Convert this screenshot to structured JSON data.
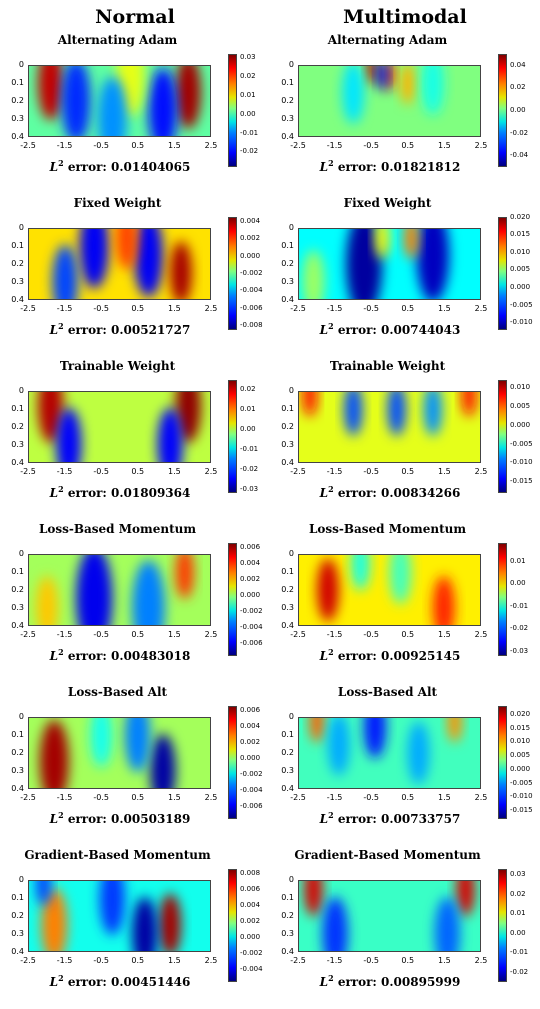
{
  "columns": [
    "Normal",
    "Multimodal"
  ],
  "chart_data": [
    {
      "type": "heatmap",
      "column": "Normal",
      "title": "Alternating Adam",
      "error_label": "L",
      "error_exp": "2",
      "error_word": "error:",
      "error_value": "0.01404065",
      "x_ticks": [
        "-2.5",
        "-1.5",
        "-0.5",
        "0.5",
        "1.5",
        "2.5"
      ],
      "y_ticks": [
        "0",
        "0.1",
        "0.2",
        "0.3",
        "0.4"
      ],
      "colorbar_ticks": [
        "0.03",
        "0.02",
        "0.01",
        "0.00",
        "-0.01",
        "-0.02"
      ],
      "vmin": -0.028,
      "vmax": 0.032,
      "blobs": [
        {
          "x": -1.9,
          "y": 0.1,
          "v": 0.028,
          "r": 0.35
        },
        {
          "x": 1.9,
          "y": 0.15,
          "v": 0.03,
          "r": 0.35
        },
        {
          "x": -1.2,
          "y": 0.2,
          "v": -0.018,
          "r": 0.4
        },
        {
          "x": 1.2,
          "y": 0.25,
          "v": -0.02,
          "r": 0.4
        },
        {
          "x": 0.3,
          "y": 0.05,
          "v": 0.008,
          "r": 0.4
        },
        {
          "x": -0.2,
          "y": 0.3,
          "v": -0.012,
          "r": 0.4
        }
      ]
    },
    {
      "type": "heatmap",
      "column": "Multimodal",
      "title": "Alternating Adam",
      "error_label": "L",
      "error_exp": "2",
      "error_word": "error:",
      "error_value": "0.01821812",
      "x_ticks": [
        "-2.5",
        "-1.5",
        "-0.5",
        "0.5",
        "1.5",
        "2.5"
      ],
      "y_ticks": [
        "0",
        "0.1",
        "0.2",
        "0.3",
        "0.4"
      ],
      "colorbar_ticks": [
        "0.04",
        "0.02",
        "0.00",
        "-0.02",
        "-0.04"
      ],
      "vmin": -0.05,
      "vmax": 0.05,
      "blobs": [
        {
          "x": -0.5,
          "y": 0.02,
          "v": 0.045,
          "r": 0.15
        },
        {
          "x": 0,
          "y": 0.05,
          "v": 0.035,
          "r": 0.15
        },
        {
          "x": -0.2,
          "y": 0.05,
          "v": -0.04,
          "r": 0.15
        },
        {
          "x": 0.5,
          "y": 0.1,
          "v": 0.02,
          "r": 0.2
        },
        {
          "x": -1.0,
          "y": 0.15,
          "v": -0.015,
          "r": 0.3
        },
        {
          "x": 1.2,
          "y": 0.1,
          "v": -0.01,
          "r": 0.3
        }
      ]
    },
    {
      "type": "heatmap",
      "column": "Normal",
      "title": "Fixed Weight",
      "error_label": "L",
      "error_exp": "2",
      "error_word": "error:",
      "error_value": "0.00521727",
      "x_ticks": [
        "-2.5",
        "-1.5",
        "-0.5",
        "0.5",
        "1.5",
        "2.5"
      ],
      "y_ticks": [
        "0",
        "0.1",
        "0.2",
        "0.3",
        "0.4"
      ],
      "colorbar_ticks": [
        "0.004",
        "0.002",
        "0.000",
        "-0.002",
        "-0.004",
        "-0.006",
        "-0.008"
      ],
      "vmin": -0.0085,
      "vmax": 0.0045,
      "blobs": [
        {
          "x": -0.7,
          "y": 0.1,
          "v": -0.007,
          "r": 0.4
        },
        {
          "x": 0.8,
          "y": 0.15,
          "v": -0.007,
          "r": 0.4
        },
        {
          "x": 1.7,
          "y": 0.25,
          "v": 0.004,
          "r": 0.3
        },
        {
          "x": 0.2,
          "y": 0.05,
          "v": 0.002,
          "r": 0.3
        },
        {
          "x": -1.5,
          "y": 0.3,
          "v": -0.006,
          "r": 0.35
        }
      ]
    },
    {
      "type": "heatmap",
      "column": "Multimodal",
      "title": "Fixed Weight",
      "error_label": "L",
      "error_exp": "2",
      "error_word": "error:",
      "error_value": "0.00744043",
      "x_ticks": [
        "-2.5",
        "-1.5",
        "-0.5",
        "0.5",
        "1.5",
        "2.5"
      ],
      "y_ticks": [
        "0",
        "0.1",
        "0.2",
        "0.3",
        "0.4"
      ],
      "colorbar_ticks": [
        "0.020",
        "0.015",
        "0.010",
        "0.005",
        "0.000",
        "-0.005",
        "-0.010"
      ],
      "vmin": -0.012,
      "vmax": 0.02,
      "blobs": [
        {
          "x": -0.7,
          "y": 0.2,
          "v": -0.011,
          "r": 0.5
        },
        {
          "x": 1.2,
          "y": 0.15,
          "v": -0.01,
          "r": 0.45
        },
        {
          "x": 0.6,
          "y": 0.05,
          "v": 0.012,
          "r": 0.2
        },
        {
          "x": -0.2,
          "y": 0.05,
          "v": 0.008,
          "r": 0.2
        },
        {
          "x": -2.1,
          "y": 0.3,
          "v": 0.005,
          "r": 0.3
        }
      ]
    },
    {
      "type": "heatmap",
      "column": "Normal",
      "title": "Trainable Weight",
      "error_label": "L",
      "error_exp": "2",
      "error_word": "error:",
      "error_value": "0.01809364",
      "x_ticks": [
        "-2.5",
        "-1.5",
        "-0.5",
        "0.5",
        "1.5",
        "2.5"
      ],
      "y_ticks": [
        "0",
        "0.1",
        "0.2",
        "0.3",
        "0.4"
      ],
      "colorbar_ticks": [
        "0.02",
        "0.01",
        "0.00",
        "-0.01",
        "-0.02",
        "-0.03"
      ],
      "vmin": -0.032,
      "vmax": 0.025,
      "blobs": [
        {
          "x": -1.9,
          "y": 0.08,
          "v": 0.022,
          "r": 0.35
        },
        {
          "x": 1.9,
          "y": 0.08,
          "v": 0.024,
          "r": 0.35
        },
        {
          "x": -1.4,
          "y": 0.3,
          "v": -0.025,
          "r": 0.35
        },
        {
          "x": 1.4,
          "y": 0.3,
          "v": -0.025,
          "r": 0.35
        }
      ]
    },
    {
      "type": "heatmap",
      "column": "Multimodal",
      "title": "Trainable Weight",
      "error_label": "L",
      "error_exp": "2",
      "error_word": "error:",
      "error_value": "0.00834266",
      "x_ticks": [
        "-2.5",
        "-1.5",
        "-0.5",
        "0.5",
        "1.5",
        "2.5"
      ],
      "y_ticks": [
        "0",
        "0.1",
        "0.2",
        "0.3",
        "0.4"
      ],
      "colorbar_ticks": [
        "0.010",
        "0.005",
        "0.000",
        "-0.005",
        "-0.010",
        "-0.015"
      ],
      "vmin": -0.018,
      "vmax": 0.012,
      "blobs": [
        {
          "x": -2.2,
          "y": 0.02,
          "v": 0.008,
          "r": 0.2
        },
        {
          "x": 2.2,
          "y": 0.02,
          "v": 0.008,
          "r": 0.2
        },
        {
          "x": -1.0,
          "y": 0.1,
          "v": -0.012,
          "r": 0.25
        },
        {
          "x": 0.2,
          "y": 0.1,
          "v": -0.012,
          "r": 0.25
        },
        {
          "x": 1.2,
          "y": 0.1,
          "v": -0.01,
          "r": 0.25
        }
      ]
    },
    {
      "type": "heatmap",
      "column": "Normal",
      "title": "Loss-Based Momentum",
      "error_label": "L",
      "error_exp": "2",
      "error_word": "error:",
      "error_value": "0.00483018",
      "x_ticks": [
        "-2.5",
        "-1.5",
        "-0.5",
        "0.5",
        "1.5",
        "2.5"
      ],
      "y_ticks": [
        "0",
        "0.1",
        "0.2",
        "0.3",
        "0.4"
      ],
      "colorbar_ticks": [
        "0.006",
        "0.004",
        "0.002",
        "0.000",
        "-0.002",
        "-0.004",
        "-0.006"
      ],
      "vmin": -0.0075,
      "vmax": 0.0065,
      "blobs": [
        {
          "x": -0.7,
          "y": 0.25,
          "v": -0.006,
          "r": 0.5
        },
        {
          "x": 0.8,
          "y": 0.3,
          "v": -0.004,
          "r": 0.45
        },
        {
          "x": 1.8,
          "y": 0.1,
          "v": 0.004,
          "r": 0.25
        },
        {
          "x": -2.0,
          "y": 0.3,
          "v": 0.002,
          "r": 0.3
        }
      ]
    },
    {
      "type": "heatmap",
      "column": "Multimodal",
      "title": "Loss-Based Momentum",
      "error_label": "L",
      "error_exp": "2",
      "error_word": "error:",
      "error_value": "0.00925145",
      "x_ticks": [
        "-2.5",
        "-1.5",
        "-0.5",
        "0.5",
        "1.5",
        "2.5"
      ],
      "y_ticks": [
        "0",
        "0.1",
        "0.2",
        "0.3",
        "0.4"
      ],
      "colorbar_ticks": [
        "0.01",
        "0.00",
        "-0.01",
        "-0.02",
        "-0.03"
      ],
      "vmin": -0.032,
      "vmax": 0.018,
      "blobs": [
        {
          "x": -1.7,
          "y": 0.2,
          "v": 0.014,
          "r": 0.3
        },
        {
          "x": 1.5,
          "y": 0.3,
          "v": 0.01,
          "r": 0.3
        },
        {
          "x": -0.8,
          "y": 0.05,
          "v": -0.012,
          "r": 0.25
        },
        {
          "x": 0.3,
          "y": 0.1,
          "v": -0.01,
          "r": 0.3
        }
      ]
    },
    {
      "type": "heatmap",
      "column": "Normal",
      "title": "Loss-Based Alt",
      "error_label": "L",
      "error_exp": "2",
      "error_word": "error:",
      "error_value": "0.00503189",
      "x_ticks": [
        "-2.5",
        "-1.5",
        "-0.5",
        "0.5",
        "1.5",
        "2.5"
      ],
      "y_ticks": [
        "0",
        "0.1",
        "0.2",
        "0.3",
        "0.4"
      ],
      "colorbar_ticks": [
        "0.006",
        "0.004",
        "0.002",
        "0.000",
        "-0.002",
        "-0.004",
        "-0.006"
      ],
      "vmin": -0.0075,
      "vmax": 0.0065,
      "blobs": [
        {
          "x": -1.8,
          "y": 0.25,
          "v": 0.006,
          "r": 0.4
        },
        {
          "x": 1.2,
          "y": 0.3,
          "v": -0.007,
          "r": 0.35
        },
        {
          "x": 0.5,
          "y": 0.1,
          "v": -0.004,
          "r": 0.35
        },
        {
          "x": -0.5,
          "y": 0.1,
          "v": -0.002,
          "r": 0.3
        }
      ]
    },
    {
      "type": "heatmap",
      "column": "Multimodal",
      "title": "Loss-Based Alt",
      "error_label": "L",
      "error_exp": "2",
      "error_word": "error:",
      "error_value": "0.00733757",
      "x_ticks": [
        "-2.5",
        "-1.5",
        "-0.5",
        "0.5",
        "1.5",
        "2.5"
      ],
      "y_ticks": [
        "0",
        "0.1",
        "0.2",
        "0.3",
        "0.4"
      ],
      "colorbar_ticks": [
        "0.020",
        "0.015",
        "0.010",
        "0.005",
        "0.000",
        "-0.005",
        "-0.010",
        "-0.015"
      ],
      "vmin": -0.018,
      "vmax": 0.023,
      "blobs": [
        {
          "x": -2.0,
          "y": 0.02,
          "v": 0.014,
          "r": 0.2
        },
        {
          "x": 1.8,
          "y": 0.02,
          "v": 0.012,
          "r": 0.2
        },
        {
          "x": -0.4,
          "y": 0.05,
          "v": -0.012,
          "r": 0.3
        },
        {
          "x": -1.4,
          "y": 0.15,
          "v": -0.006,
          "r": 0.3
        },
        {
          "x": 0.8,
          "y": 0.2,
          "v": -0.006,
          "r": 0.3
        }
      ]
    },
    {
      "type": "heatmap",
      "column": "Normal",
      "title": "Gradient-Based Momentum",
      "error_label": "L",
      "error_exp": "2",
      "error_word": "error:",
      "error_value": "0.00451446",
      "x_ticks": [
        "-2.5",
        "-1.5",
        "-0.5",
        "0.5",
        "1.5",
        "2.5"
      ],
      "y_ticks": [
        "0",
        "0.1",
        "0.2",
        "0.3",
        "0.4"
      ],
      "colorbar_ticks": [
        "0.008",
        "0.006",
        "0.004",
        "0.002",
        "0.000",
        "-0.002",
        "-0.004"
      ],
      "vmin": -0.0055,
      "vmax": 0.0085,
      "blobs": [
        {
          "x": 1.4,
          "y": 0.25,
          "v": 0.008,
          "r": 0.3
        },
        {
          "x": -1.8,
          "y": 0.25,
          "v": 0.005,
          "r": 0.35
        },
        {
          "x": 0.7,
          "y": 0.3,
          "v": -0.005,
          "r": 0.35
        },
        {
          "x": -0.2,
          "y": 0.1,
          "v": -0.003,
          "r": 0.35
        },
        {
          "x": -2.1,
          "y": 0.02,
          "v": -0.003,
          "r": 0.2
        }
      ]
    },
    {
      "type": "heatmap",
      "column": "Multimodal",
      "title": "Gradient-Based Momentum",
      "error_label": "L",
      "error_exp": "2",
      "error_word": "error:",
      "error_value": "0.00895999",
      "x_ticks": [
        "-2.5",
        "-1.5",
        "-0.5",
        "0.5",
        "1.5",
        "2.5"
      ],
      "y_ticks": [
        "0",
        "0.1",
        "0.2",
        "0.3",
        "0.4"
      ],
      "colorbar_ticks": [
        "0.03",
        "0.02",
        "0.01",
        "0.00",
        "-0.01",
        "-0.02"
      ],
      "vmin": -0.025,
      "vmax": 0.033,
      "blobs": [
        {
          "x": -2.1,
          "y": 0.05,
          "v": 0.028,
          "r": 0.25
        },
        {
          "x": 2.1,
          "y": 0.05,
          "v": 0.028,
          "r": 0.25
        },
        {
          "x": -1.5,
          "y": 0.3,
          "v": -0.015,
          "r": 0.35
        },
        {
          "x": 1.6,
          "y": 0.3,
          "v": -0.012,
          "r": 0.35
        }
      ]
    }
  ]
}
